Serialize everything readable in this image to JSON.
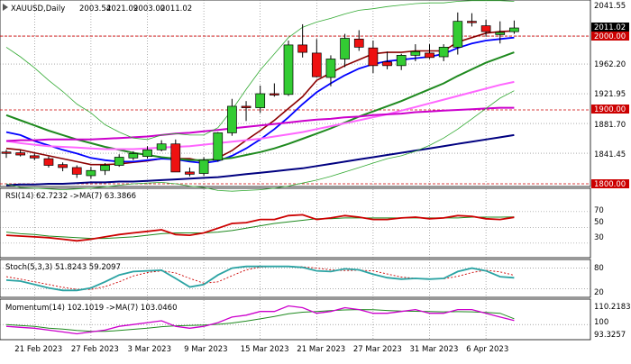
{
  "header": {
    "symbol": "XAUUSD,Daily",
    "open": "2003.54",
    "high": "2021.09",
    "low": "2003.00",
    "close": "2011.02"
  },
  "indicators": {
    "rsi": {
      "label": "RSI(14) 62.7232 ->MA(7) 63.3866",
      "levels": [
        "70",
        "50",
        "30"
      ]
    },
    "stoch": {
      "label": "Stoch(5,3,3) 51.8243 59.2097",
      "levels": [
        "80",
        "20"
      ]
    },
    "momentum": {
      "label": "Momentum(14) 102.1019 ->MA(7) 103.0460",
      "levels": [
        "110.2183",
        "100",
        "93.3257"
      ]
    }
  },
  "price_scale": [
    "2041.55",
    "2000.00",
    "1962.20",
    "1921.95",
    "1881.70",
    "1841.45",
    "1800.00"
  ],
  "markers": {
    "current_price": "2011.02",
    "level_2000": "2000.00",
    "level_1900": "1900.00",
    "level_1800": "1800.00"
  },
  "colors": {
    "bull_candle": "#33cc33",
    "bear_candle": "#ee1111",
    "tenkan": "#8b0000",
    "kijun": "#0000ff",
    "sma_mid": "#1f8a1f",
    "sma_pink": "#ff66ff",
    "sma_magenta": "#cc00cc",
    "sma_navy": "#000080",
    "bollinger": "#33aa33",
    "level_line": "#cc0000"
  },
  "chart_data": {
    "type": "candlestick",
    "x": [
      "2023-02-17",
      "2023-02-20",
      "2023-02-21",
      "2023-02-22",
      "2023-02-23",
      "2023-02-24",
      "2023-02-27",
      "2023-02-28",
      "2023-03-01",
      "2023-03-02",
      "2023-03-03",
      "2023-03-06",
      "2023-03-07",
      "2023-03-08",
      "2023-03-09",
      "2023-03-10",
      "2023-03-13",
      "2023-03-14",
      "2023-03-15",
      "2023-03-16",
      "2023-03-17",
      "2023-03-20",
      "2023-03-21",
      "2023-03-22",
      "2023-03-23",
      "2023-03-24",
      "2023-03-27",
      "2023-03-28",
      "2023-03-29",
      "2023-03-30",
      "2023-03-31",
      "2023-04-03",
      "2023-04-04",
      "2023-04-05",
      "2023-04-06",
      "2023-04-07",
      "2023-04-10"
    ],
    "x_tick_labels": [
      "21 Feb 2023",
      "27 Feb 2023",
      "3 Mar 2023",
      "9 Mar 2023",
      "15 Mar 2023",
      "21 Mar 2023",
      "27 Mar 2023",
      "31 Mar 2023",
      "6 Apr 2023"
    ],
    "open": [
      1843,
      1842,
      1838,
      1834,
      1826,
      1822,
      1811,
      1818,
      1825,
      1835,
      1837,
      1846,
      1854,
      1816,
      1814,
      1832,
      1869,
      1905,
      1903,
      1922,
      1921,
      1988,
      1977,
      1944,
      1969,
      1996,
      1984,
      1965,
      1960,
      1974,
      1977,
      1972,
      1985,
      2020,
      2014,
      2002,
      2006
    ],
    "high": [
      1846,
      1846,
      1841,
      1837,
      1829,
      1825,
      1823,
      1828,
      1840,
      1844,
      1851,
      1859,
      1860,
      1822,
      1836,
      1870,
      1915,
      1912,
      1933,
      1936,
      1994,
      2016,
      1996,
      1974,
      2003,
      2008,
      1994,
      1979,
      1976,
      1989,
      1989,
      1989,
      2032,
      2031,
      2022,
      2020,
      2021.09
    ],
    "low": [
      1835,
      1837,
      1832,
      1822,
      1817,
      1808,
      1807,
      1812,
      1823,
      1832,
      1834,
      1844,
      1816,
      1810,
      1811,
      1830,
      1865,
      1885,
      1896,
      1918,
      1919,
      1971,
      1944,
      1932,
      1958,
      1980,
      1950,
      1955,
      1954,
      1966,
      1969,
      1966,
      1975,
      2013,
      1999,
      1990,
      2003
    ],
    "close": [
      1842,
      1839,
      1835,
      1825,
      1822,
      1813,
      1818,
      1825,
      1836,
      1841,
      1846,
      1854,
      1816,
      1813,
      1832,
      1869,
      1905,
      1903,
      1922,
      1921,
      1988,
      1978,
      1945,
      1969,
      1997,
      1985,
      1960,
      1960,
      1974,
      1979,
      1971,
      1985,
      2020,
      2019,
      2006,
      2005,
      2011.02
    ],
    "series": [
      {
        "kind": "tenkan",
        "values": [
          1848,
          1846,
          1842,
          1838,
          1834,
          1830,
          1826,
          1826,
          1827,
          1829,
          1831,
          1834,
          1834,
          1834,
          1830,
          1835,
          1845,
          1859,
          1872,
          1886,
          1902,
          1918,
          1940,
          1950,
          1960,
          1968,
          1976,
          1978,
          1978,
          1980,
          1980,
          1980,
          1992,
          1998,
          2004,
          2006,
          2007
        ]
      },
      {
        "kind": "kijun",
        "values": [
          1870,
          1866,
          1858,
          1852,
          1846,
          1841,
          1835,
          1832,
          1830,
          1830,
          1832,
          1834,
          1833,
          1830,
          1828,
          1831,
          1838,
          1848,
          1860,
          1874,
          1890,
          1908,
          1924,
          1936,
          1947,
          1956,
          1962,
          1966,
          1968,
          1970,
          1972,
          1976,
          1984,
          1990,
          1994,
          1996,
          1998
        ]
      },
      {
        "kind": "sma_mid",
        "values": [
          1893,
          1886,
          1879,
          1872,
          1866,
          1860,
          1855,
          1850,
          1846,
          1842,
          1839,
          1836,
          1834,
          1832,
          1832,
          1833,
          1835,
          1839,
          1843,
          1848,
          1854,
          1861,
          1868,
          1875,
          1883,
          1891,
          1898,
          1905,
          1912,
          1920,
          1928,
          1936,
          1946,
          1955,
          1964,
          1971,
          1978
        ]
      },
      {
        "kind": "sma_pink",
        "values": [
          1858,
          1855,
          1853,
          1851,
          1850,
          1849,
          1848,
          1847,
          1847,
          1847,
          1848,
          1849,
          1850,
          1851,
          1853,
          1855,
          1857,
          1859,
          1861,
          1864,
          1867,
          1870,
          1874,
          1878,
          1882,
          1886,
          1890,
          1894,
          1899,
          1904,
          1909,
          1914,
          1919,
          1924,
          1929,
          1934,
          1938
        ]
      },
      {
        "kind": "sma_magenta",
        "values": [
          1858,
          1859,
          1859,
          1860,
          1860,
          1860,
          1860,
          1861,
          1862,
          1863,
          1864,
          1866,
          1868,
          1869,
          1871,
          1873,
          1875,
          1877,
          1879,
          1881,
          1883,
          1885,
          1887,
          1888,
          1890,
          1891,
          1893,
          1894,
          1895,
          1897,
          1898,
          1899,
          1900,
          1901,
          1902,
          1903,
          1903
        ]
      },
      {
        "kind": "sma_navy",
        "values": [
          1798,
          1799,
          1799,
          1800,
          1800,
          1801,
          1802,
          1802,
          1803,
          1803,
          1804,
          1805,
          1806,
          1807,
          1808,
          1809,
          1811,
          1813,
          1815,
          1817,
          1819,
          1821,
          1824,
          1827,
          1830,
          1833,
          1836,
          1839,
          1842,
          1845,
          1848,
          1851,
          1854,
          1857,
          1860,
          1863,
          1866
        ]
      },
      {
        "kind": "bollinger_upper",
        "values": [
          1985,
          1972,
          1957,
          1940,
          1925,
          1908,
          1896,
          1880,
          1870,
          1862,
          1860,
          1866,
          1868,
          1866,
          1866,
          1876,
          1900,
          1928,
          1954,
          1976,
          1998,
          2012,
          2019,
          2024,
          2030,
          2035,
          2037,
          2040,
          2042,
          2044,
          2045,
          2045,
          2047,
          2048,
          2048,
          2048,
          2047
        ]
      },
      {
        "kind": "bollinger_lower",
        "values": [
          1800,
          1795,
          1794,
          1793,
          1792,
          1793,
          1794,
          1796,
          1798,
          1800,
          1801,
          1802,
          1800,
          1797,
          1795,
          1791,
          1790,
          1791,
          1792,
          1794,
          1797,
          1801,
          1805,
          1810,
          1816,
          1822,
          1828,
          1834,
          1838,
          1844,
          1852,
          1862,
          1874,
          1888,
          1902,
          1916,
          1926
        ]
      }
    ],
    "rsi": [
      40,
      39,
      38,
      37,
      35,
      33,
      35,
      38,
      41,
      43,
      45,
      47,
      41,
      40,
      43,
      49,
      55,
      56,
      60,
      60,
      65,
      66,
      60,
      62,
      65,
      63,
      60,
      60,
      62,
      63,
      61,
      62,
      65,
      64,
      61,
      60,
      62.72
    ],
    "rsi_ma": [
      44,
      42,
      41,
      39,
      38,
      37,
      36,
      36,
      37,
      38,
      40,
      42,
      43,
      43,
      43,
      44,
      46,
      49,
      52,
      55,
      57,
      59,
      61,
      61,
      62,
      62,
      62,
      62,
      62,
      62,
      62,
      62,
      62,
      63,
      63,
      63,
      63.39
    ],
    "stoch_k": [
      45,
      42,
      32,
      22,
      15,
      15,
      22,
      40,
      60,
      70,
      72,
      74,
      50,
      25,
      32,
      60,
      80,
      85,
      85,
      85,
      85,
      82,
      72,
      70,
      78,
      75,
      62,
      52,
      48,
      50,
      48,
      50,
      70,
      80,
      72,
      55,
      51.82
    ],
    "stoch_d": [
      55,
      48,
      40,
      32,
      24,
      18,
      18,
      26,
      40,
      57,
      67,
      72,
      66,
      50,
      36,
      40,
      58,
      75,
      83,
      85,
      85,
      84,
      80,
      75,
      73,
      74,
      72,
      63,
      54,
      50,
      49,
      49,
      56,
      67,
      74,
      69,
      59.21
    ],
    "momentum": [
      99,
      98.5,
      98,
      97,
      96,
      95,
      96,
      97,
      99,
      100,
      101,
      102,
      99,
      98,
      99,
      101,
      104,
      105,
      107,
      107,
      110,
      109,
      106,
      107,
      109,
      108,
      106,
      106,
      107,
      108,
      106,
      106,
      108,
      108,
      106,
      104,
      102.1
    ],
    "momentum_ma": [
      100,
      99.5,
      99,
      98,
      97.5,
      96.8,
      96.3,
      96.3,
      96.8,
      97.4,
      98,
      98.8,
      99.3,
      99.5,
      99.7,
      100.1,
      100.8,
      101.8,
      103,
      104.3,
      105.8,
      106.6,
      107,
      107.4,
      107.8,
      108,
      107.9,
      107.5,
      107.2,
      107.1,
      107,
      106.8,
      106.9,
      106.8,
      106.5,
      106,
      103.05
    ]
  }
}
